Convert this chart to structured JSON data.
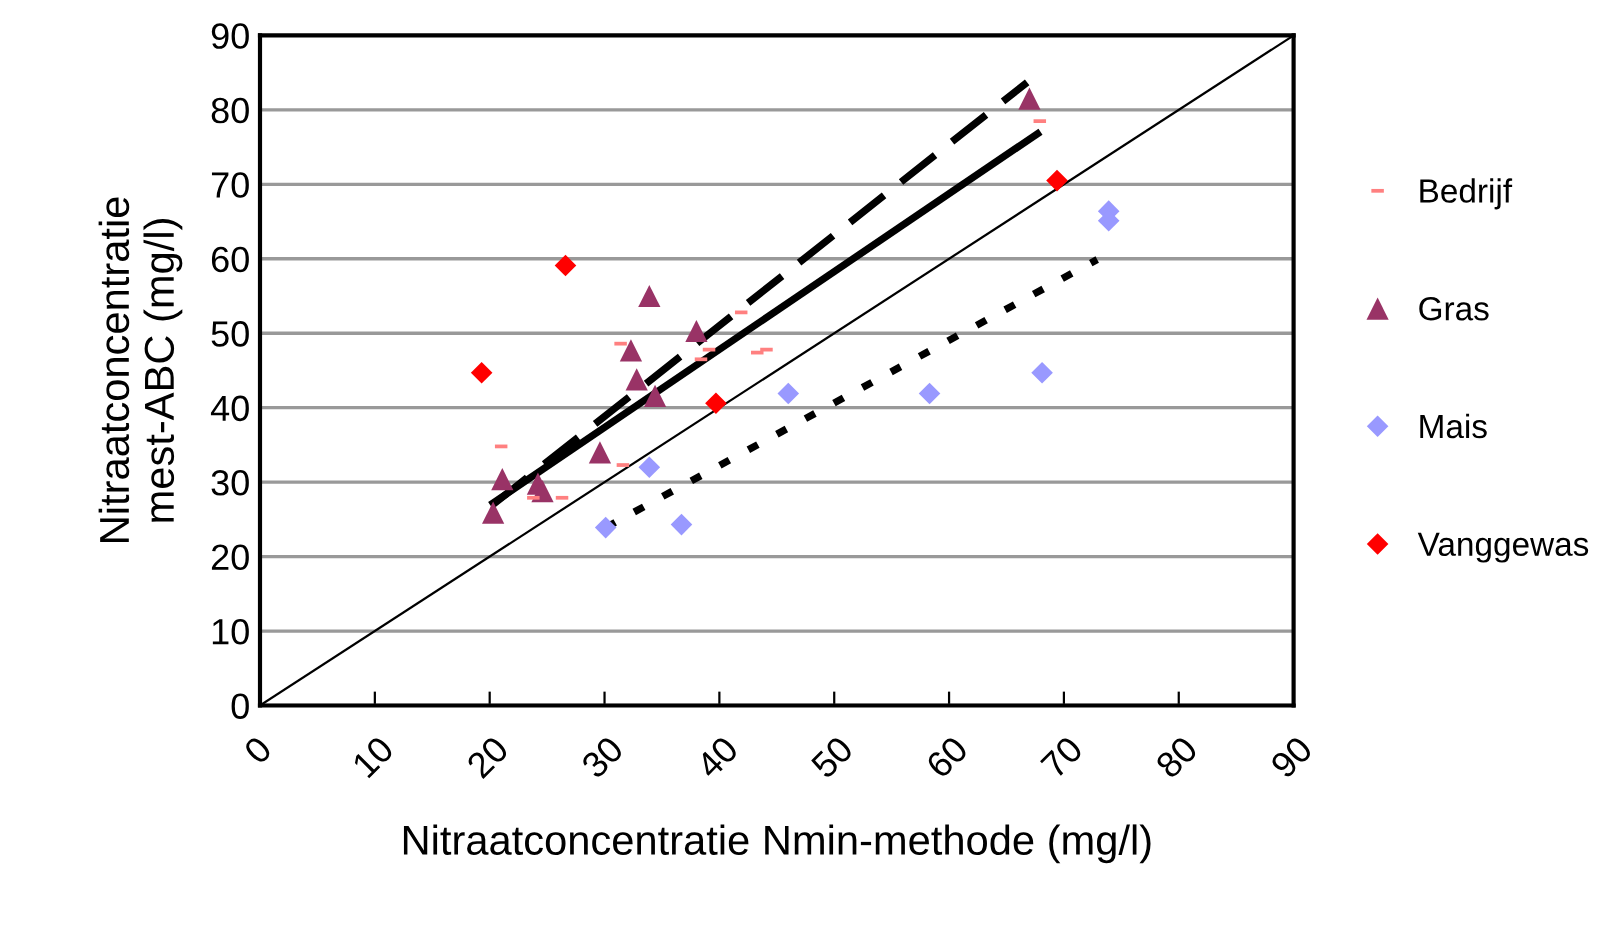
{
  "chart_data": {
    "type": "scatter",
    "xlabel": "Nitraatconcentratie Nmin-methode (mg/l)",
    "ylabel": "Nitraatconcentratie\nmest-ABC (mg/l)",
    "xlim": [
      0,
      90
    ],
    "ylim": [
      0,
      90
    ],
    "xticks": [
      0,
      10,
      20,
      30,
      40,
      50,
      60,
      70,
      80,
      90
    ],
    "yticks": [
      0,
      10,
      20,
      30,
      40,
      50,
      60,
      70,
      80,
      90
    ],
    "grid": "y",
    "legend": "right",
    "series": [
      {
        "name": "Bedrijf",
        "color": "#ff8080",
        "marker": "square",
        "x": [
          21.0,
          23.8,
          26.3,
          31.6,
          31.4,
          38.4,
          39.1,
          41.9,
          43.3,
          44.1,
          67.9
        ],
        "values": [
          34.8,
          27.9,
          27.9,
          32.3,
          48.6,
          46.5,
          47.8,
          52.8,
          47.4,
          47.8,
          78.5
        ]
      },
      {
        "name": "Gras",
        "color": "#993366",
        "marker": "triangle",
        "x": [
          20.3,
          21.1,
          24.2,
          24.6,
          29.6,
          32.3,
          32.8,
          33.9,
          34.4,
          38.0,
          67.0
        ],
        "values": [
          25.9,
          30.4,
          29.8,
          28.8,
          34.0,
          47.7,
          43.8,
          55.0,
          41.6,
          50.3,
          81.5
        ]
      },
      {
        "name": "Mais",
        "color": "#9999ff",
        "marker": "diamond",
        "x": [
          30.1,
          33.9,
          36.7,
          46.0,
          58.3,
          68.1,
          73.9,
          73.9
        ],
        "values": [
          23.9,
          32.0,
          24.3,
          41.9,
          41.9,
          44.7,
          66.4,
          65.1
        ]
      },
      {
        "name": "Vanggewas",
        "color": "#ff0000",
        "marker": "diamond",
        "x": [
          19.3,
          26.6,
          39.7,
          69.4
        ],
        "values": [
          44.7,
          59.1,
          40.6,
          70.5
        ]
      },
      {
        "type": "line",
        "color": "#000000",
        "line_style": "solid",
        "x": [
          20.3,
          67.7
        ],
        "values": [
          27.2,
          76.8
        ]
      },
      {
        "type": "line",
        "color": "#000000",
        "line_style": "dashed",
        "x": [
          20.3,
          66.8
        ],
        "values": [
          27.0,
          83.7
        ]
      },
      {
        "type": "line",
        "color": "#000000",
        "line_style": "dotted",
        "x": [
          30.1,
          72.9
        ],
        "values": [
          23.9,
          59.9
        ]
      },
      {
        "type": "line",
        "color": "#000000",
        "line_style": "solid",
        "x": [
          0,
          90
        ],
        "values": [
          0,
          90
        ]
      }
    ]
  }
}
